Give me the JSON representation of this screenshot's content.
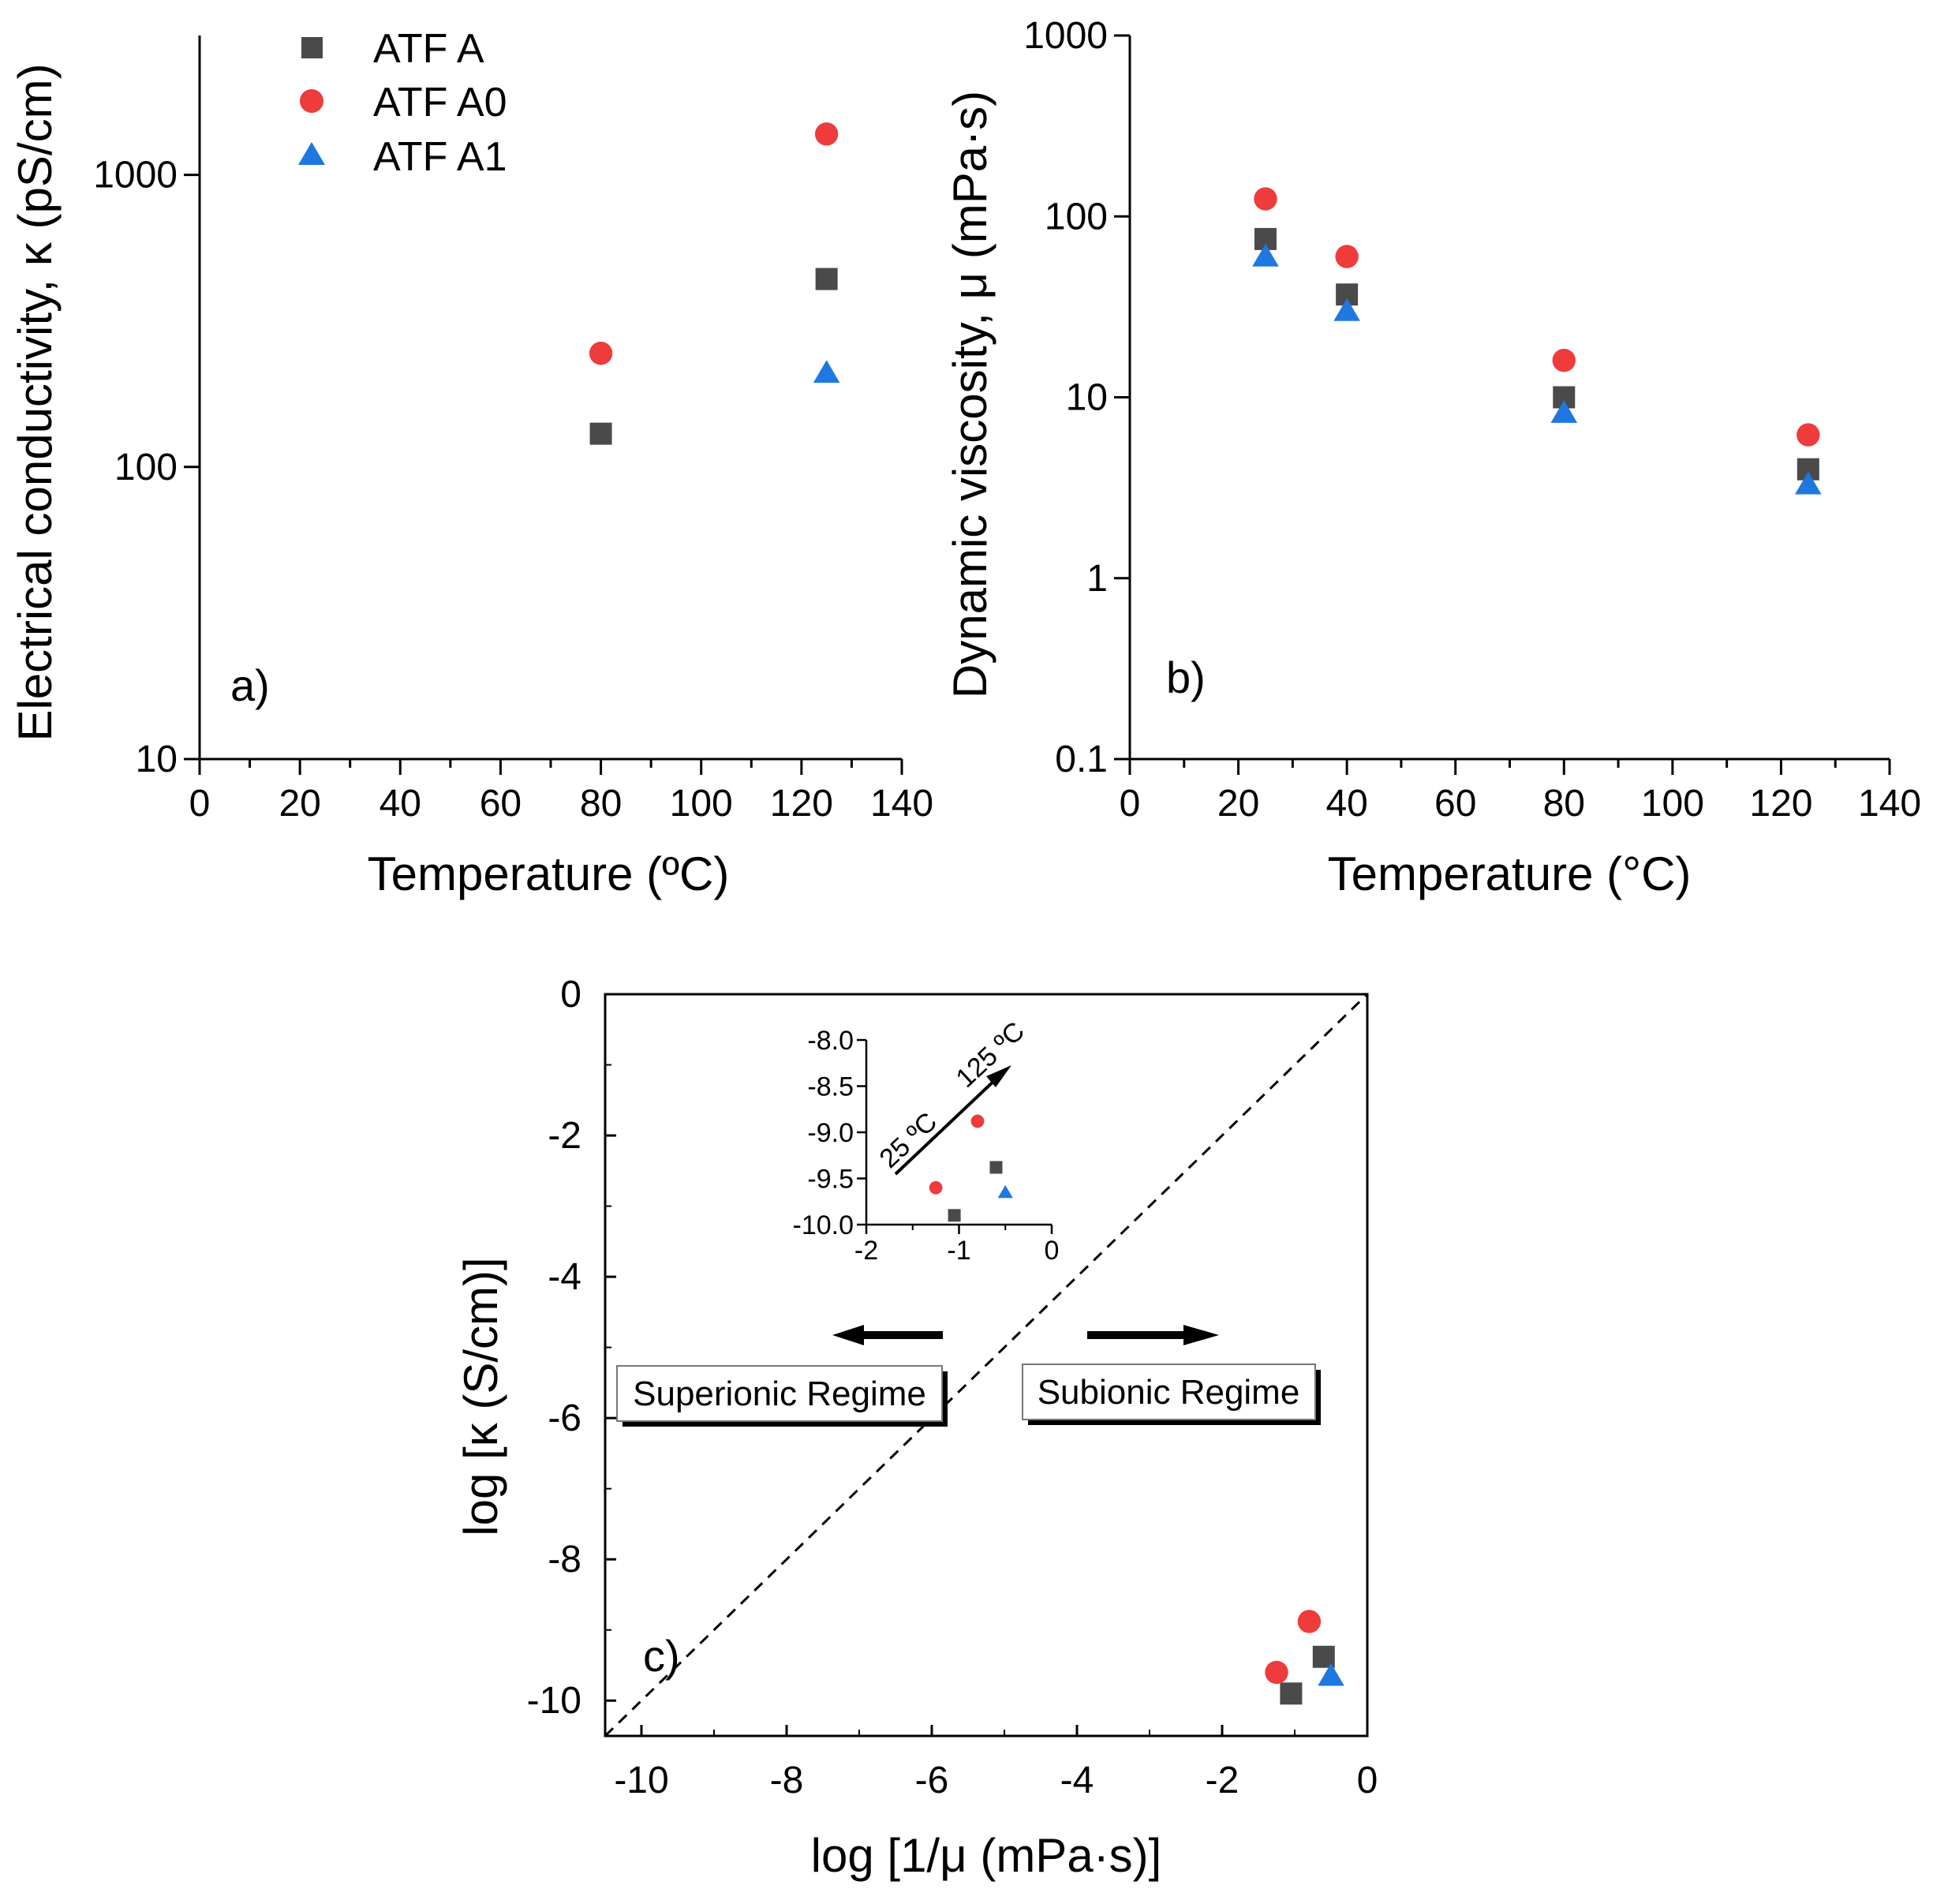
{
  "colors": {
    "ATF A": "#4a4a4a",
    "ATF A0": "#ee3b3b",
    "ATF A1": "#1f77e0",
    "axis": "#000000"
  },
  "legend": {
    "items": [
      {
        "name": "ATF A",
        "marker": "square"
      },
      {
        "name": "ATF A0",
        "marker": "circle"
      },
      {
        "name": "ATF A1",
        "marker": "triangle"
      }
    ]
  },
  "chart_data": [
    {
      "id": "a",
      "type": "scatter",
      "panel_label": "a)",
      "xlabel": "Temperature (ºC)",
      "ylabel": "Electrical conductivity, κ (pS/cm)",
      "xlim": [
        0,
        140
      ],
      "ylim": [
        10,
        3000
      ],
      "yscale": "log",
      "xticks": [
        0,
        20,
        40,
        60,
        80,
        100,
        120,
        140
      ],
      "xtick_labels": [
        "0",
        "20",
        "40",
        "60",
        "80",
        "100",
        "120",
        "140"
      ],
      "yticks": [
        10,
        100,
        1000
      ],
      "ytick_labels": [
        "10",
        "100",
        "1000"
      ],
      "series": [
        {
          "name": "ATF A",
          "marker": "square",
          "x": [
            80,
            125
          ],
          "y": [
            130,
            440
          ]
        },
        {
          "name": "ATF A0",
          "marker": "circle",
          "x": [
            80,
            125
          ],
          "y": [
            245,
            1380
          ]
        },
        {
          "name": "ATF A1",
          "marker": "triangle",
          "x": [
            125
          ],
          "y": [
            210
          ]
        }
      ]
    },
    {
      "id": "b",
      "type": "scatter",
      "panel_label": "b)",
      "xlabel": "Temperature (°C)",
      "ylabel": "Dynamic viscosity, μ (mPa·s)",
      "xlim": [
        0,
        140
      ],
      "ylim": [
        0.1,
        1000
      ],
      "yscale": "log",
      "xticks": [
        0,
        20,
        40,
        60,
        80,
        100,
        120,
        140
      ],
      "xtick_labels": [
        "0",
        "20",
        "40",
        "60",
        "80",
        "100",
        "120",
        "140"
      ],
      "yticks": [
        0.1,
        1,
        10,
        100,
        1000
      ],
      "ytick_labels": [
        "0.1",
        "1",
        "10",
        "100",
        "1000"
      ],
      "series": [
        {
          "name": "ATF A",
          "marker": "square",
          "x": [
            25,
            40,
            80,
            125
          ],
          "y": [
            75,
            37,
            10,
            4
          ]
        },
        {
          "name": "ATF A0",
          "marker": "circle",
          "x": [
            25,
            40,
            80,
            125
          ],
          "y": [
            125,
            60,
            16,
            6.2
          ]
        },
        {
          "name": "ATF A1",
          "marker": "triangle",
          "x": [
            25,
            40,
            80,
            125
          ],
          "y": [
            60,
            30,
            8.2,
            3.3
          ]
        }
      ]
    },
    {
      "id": "c",
      "type": "scatter",
      "panel_label": "c)",
      "xlabel": "log [1/μ (mPa·s)]",
      "ylabel": "log [κ (S/cm)]",
      "xlim": [
        -10.5,
        0
      ],
      "ylim": [
        -10.5,
        0
      ],
      "xticks": [
        -10,
        -8,
        -6,
        -4,
        -2,
        0
      ],
      "xtick_labels": [
        "-10",
        "-8",
        "-6",
        "-4",
        "-2",
        "0"
      ],
      "yticks": [
        -10,
        -8,
        -6,
        -4,
        -2,
        0
      ],
      "ytick_labels": [
        "-10",
        "-8",
        "-6",
        "-4",
        "-2",
        "0"
      ],
      "reference_line": "y = x (dashed)",
      "annotations": {
        "left": "Superionic Regime",
        "right": "Subionic Regime"
      },
      "series": [
        {
          "name": "ATF A",
          "marker": "square",
          "x": [
            -1.05,
            -0.6
          ],
          "y": [
            -9.9,
            -9.38
          ]
        },
        {
          "name": "ATF A0",
          "marker": "circle",
          "x": [
            -1.25,
            -0.8
          ],
          "y": [
            -9.6,
            -8.88
          ]
        },
        {
          "name": "ATF A1",
          "marker": "triangle",
          "x": [
            -0.5
          ],
          "y": [
            -9.65
          ]
        }
      ],
      "inset": {
        "xlim": [
          -2,
          0
        ],
        "ylim": [
          -10,
          -8
        ],
        "xticks": [
          -2,
          -1,
          0
        ],
        "xtick_labels": [
          "-2",
          "-1",
          "0"
        ],
        "yticks": [
          -10,
          -9.5,
          -9,
          -8.5,
          -8
        ],
        "ytick_labels": [
          "-10.0",
          "-9.5",
          "-9.0",
          "-8.5",
          "-8.0"
        ],
        "arrow_start_label": "25 ºC",
        "arrow_end_label": "125 ºC"
      }
    }
  ]
}
